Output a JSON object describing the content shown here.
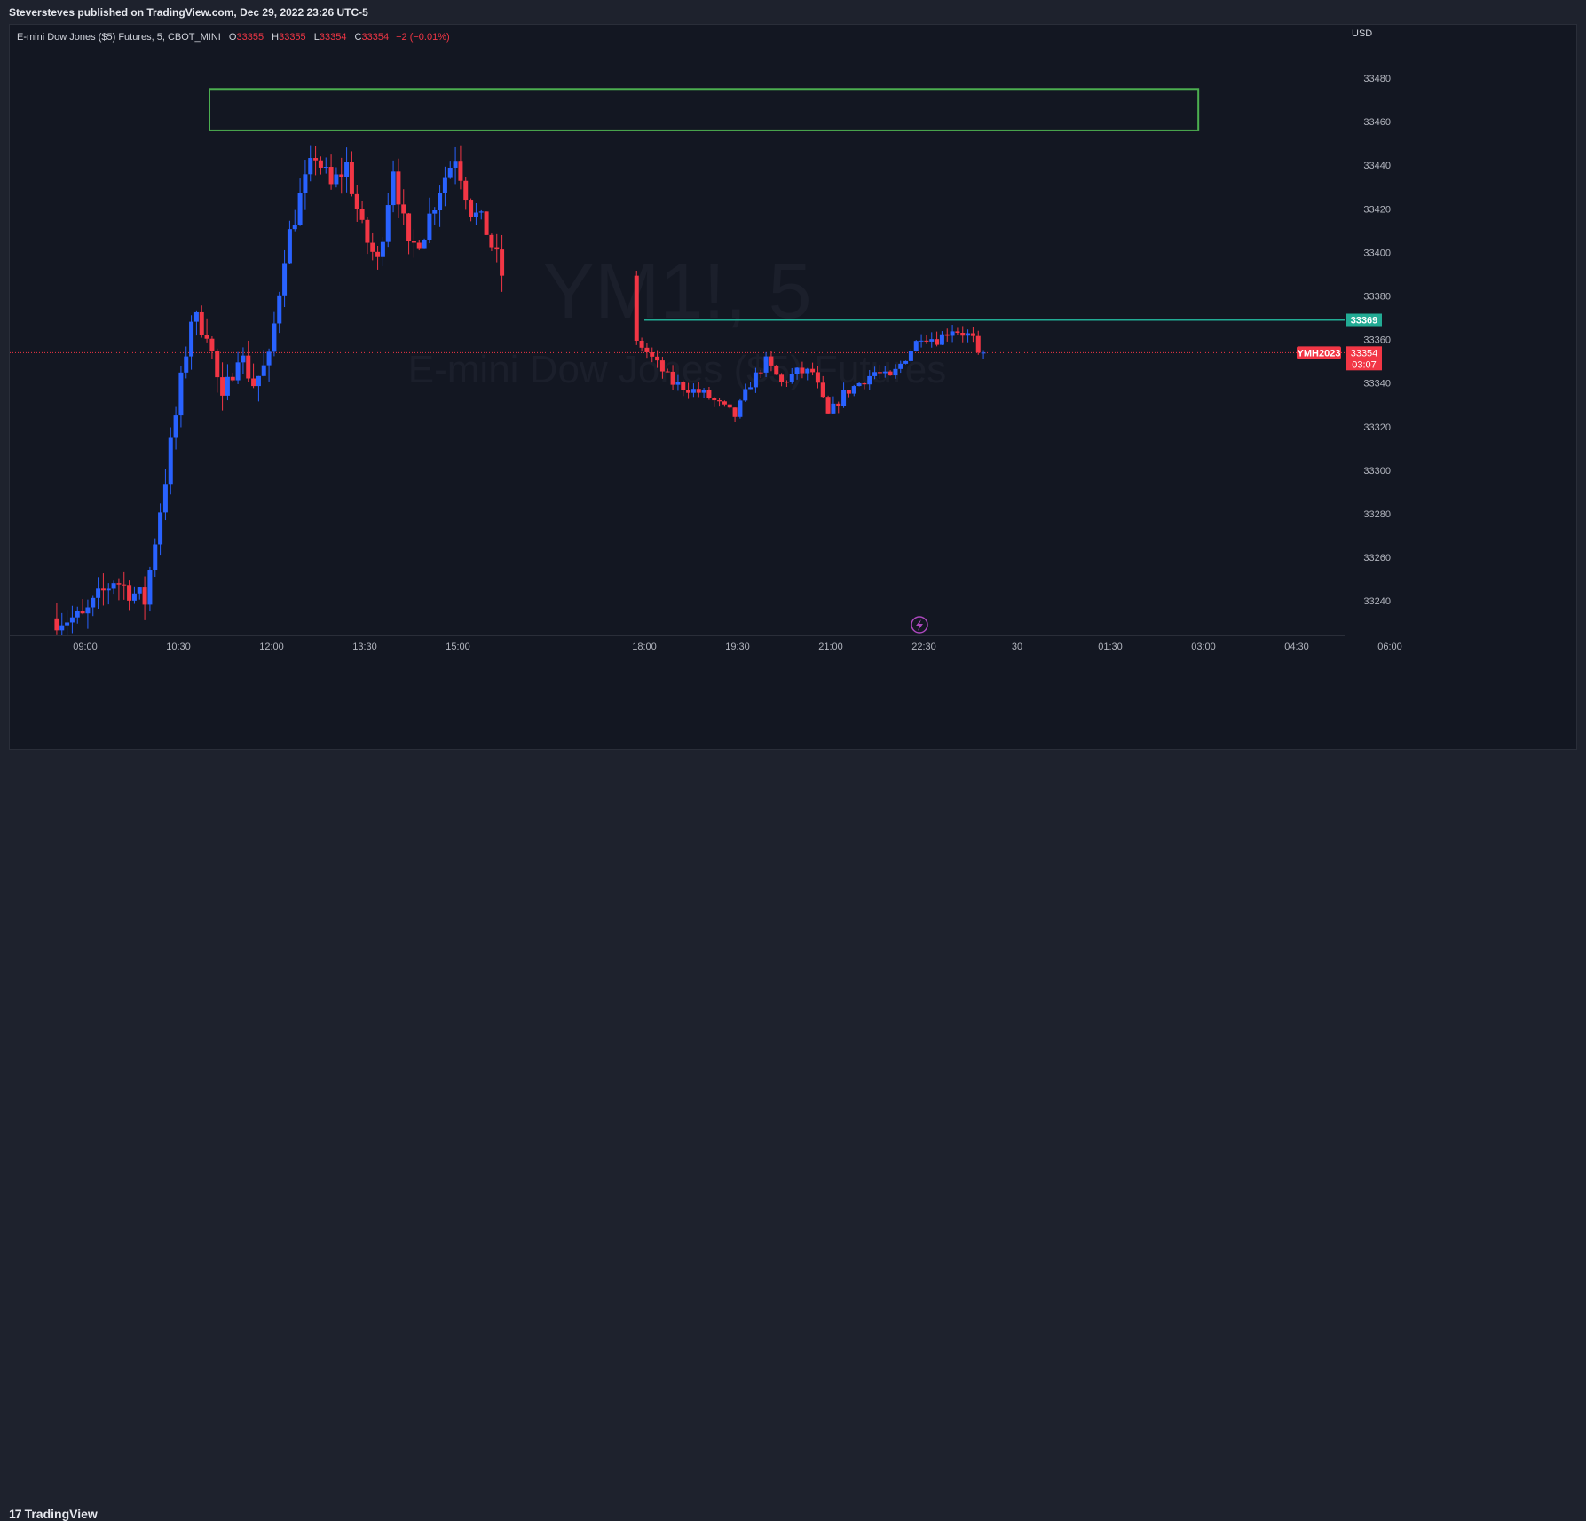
{
  "header": {
    "publisher_line": "Steversteves published on TradingView.com, Dec 29, 2022 23:26 UTC-5"
  },
  "legend": {
    "symbol": "E-mini Dow Jones ($5) Futures, 5, CBOT_MINI",
    "open_label": "O",
    "open_value": "33355",
    "high_label": "H",
    "high_value": "33355",
    "low_label": "L",
    "low_value": "33354",
    "close_label": "C",
    "close_value": "33354",
    "change": "−2 (−0.01%)"
  },
  "watermark": {
    "line1": "YM1!, 5",
    "line2": "E-mini Dow Jones ($5) Futures"
  },
  "footer": {
    "brand_mark": "17",
    "brand_name": "TradingView"
  },
  "colors": {
    "background": "#131722",
    "frame": "#1e222d",
    "up": "#2962ff",
    "down": "#f23645",
    "supply_zone": "#4caf50",
    "resistance_line": "#22ab94",
    "last_price_line": "#f23645",
    "event_icon": "#ab47bc"
  },
  "icons": {
    "event": "lightning-bolt-icon",
    "brand": "tradingview-logo-icon"
  },
  "chart_data": {
    "type": "candlestick",
    "currency": "USD",
    "interval_minutes": 5,
    "y_ticks": [
      33240,
      33260,
      33280,
      33300,
      33320,
      33340,
      33360,
      33380,
      33400,
      33420,
      33440,
      33460,
      33480
    ],
    "x_ticks": [
      "09:00",
      "10:30",
      "12:00",
      "13:30",
      "15:00",
      "18:00",
      "19:30",
      "21:00",
      "22:30",
      "30",
      "01:30",
      "03:00",
      "04:30",
      "06:00"
    ],
    "x_tick_minutes": [
      540,
      630,
      720,
      810,
      900,
      1080,
      1170,
      1260,
      1350,
      1440,
      1530,
      1620,
      1710,
      1800
    ],
    "series": {
      "session_start": "08:30",
      "session_break": [
        "15:40",
        "17:50"
      ],
      "last_bar": "23:25",
      "path": [
        [
          540,
          33232,
          "up"
        ],
        [
          570,
          33250,
          "up"
        ],
        [
          600,
          33240,
          "down"
        ],
        [
          630,
          33325,
          "up"
        ],
        [
          645,
          33370,
          "up"
        ],
        [
          660,
          33365,
          "down"
        ],
        [
          675,
          33330,
          "down"
        ],
        [
          690,
          33355,
          "up"
        ],
        [
          705,
          33340,
          "down"
        ],
        [
          720,
          33350,
          "up"
        ],
        [
          735,
          33400,
          "up"
        ],
        [
          750,
          33425,
          "up"
        ],
        [
          765,
          33445,
          "up"
        ],
        [
          780,
          33430,
          "down"
        ],
        [
          795,
          33440,
          "up"
        ],
        [
          810,
          33410,
          "down"
        ],
        [
          825,
          33395,
          "down"
        ],
        [
          840,
          33440,
          "up"
        ],
        [
          855,
          33400,
          "down"
        ],
        [
          870,
          33410,
          "up"
        ],
        [
          885,
          33430,
          "up"
        ],
        [
          900,
          33445,
          "up"
        ],
        [
          915,
          33420,
          "down"
        ],
        [
          930,
          33410,
          "down"
        ],
        [
          945,
          33390,
          "down"
        ],
        [
          960,
          33395,
          "up"
        ],
        [
          975,
          33410,
          "up"
        ],
        [
          990,
          33380,
          "down"
        ],
        [
          1000,
          33372,
          "down"
        ],
        [
          1080,
          33357,
          "down"
        ],
        [
          1110,
          33340,
          "down"
        ],
        [
          1140,
          33335,
          "down"
        ],
        [
          1170,
          33325,
          "down"
        ],
        [
          1185,
          33340,
          "up"
        ],
        [
          1200,
          33350,
          "up"
        ],
        [
          1215,
          33340,
          "down"
        ],
        [
          1230,
          33345,
          "up"
        ],
        [
          1245,
          33345,
          "down"
        ],
        [
          1260,
          33325,
          "down"
        ],
        [
          1275,
          33335,
          "up"
        ],
        [
          1290,
          33340,
          "down"
        ],
        [
          1305,
          33345,
          "up"
        ],
        [
          1320,
          33342,
          "down"
        ],
        [
          1335,
          33352,
          "up"
        ],
        [
          1350,
          33362,
          "up"
        ],
        [
          1365,
          33360,
          "down"
        ],
        [
          1380,
          33365,
          "up"
        ],
        [
          1395,
          33362,
          "down"
        ],
        [
          1410,
          33356,
          "down"
        ],
        [
          1430,
          33354,
          "down"
        ]
      ]
    },
    "supply_zone": {
      "top": 33475,
      "bottom": 33456,
      "from": "11:00",
      "to": "02:55"
    },
    "resistance_line": {
      "price": 33369,
      "from": "18:00"
    },
    "last_price": {
      "value": 33354,
      "symbol_badge": "YMH2023",
      "price_label": "33354",
      "countdown": "03:07"
    },
    "resistance_label": "33369",
    "grid": false
  }
}
